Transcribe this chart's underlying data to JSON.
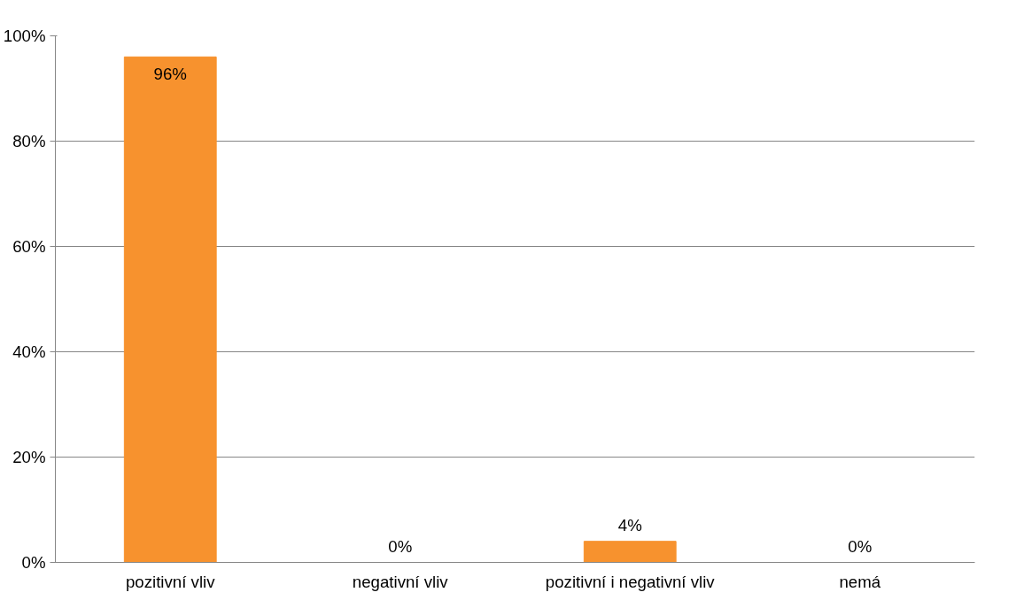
{
  "chart_data": {
    "type": "bar",
    "categories": [
      "pozitivní vliv",
      "negativní vliv",
      "pozitivní i negativní vliv",
      "nemá"
    ],
    "values": [
      96,
      0,
      4,
      0
    ],
    "value_labels": [
      "96%",
      "0%",
      "4%",
      "0%"
    ],
    "color": "#f7922e",
    "ylim": [
      0,
      100
    ],
    "yticks": [
      {
        "value": 0,
        "label": "0%"
      },
      {
        "value": 20,
        "label": "20%"
      },
      {
        "value": 40,
        "label": "40%"
      },
      {
        "value": 60,
        "label": "60%"
      },
      {
        "value": 80,
        "label": "80%"
      },
      {
        "value": 100,
        "label": "100%"
      }
    ],
    "grid": "y"
  }
}
